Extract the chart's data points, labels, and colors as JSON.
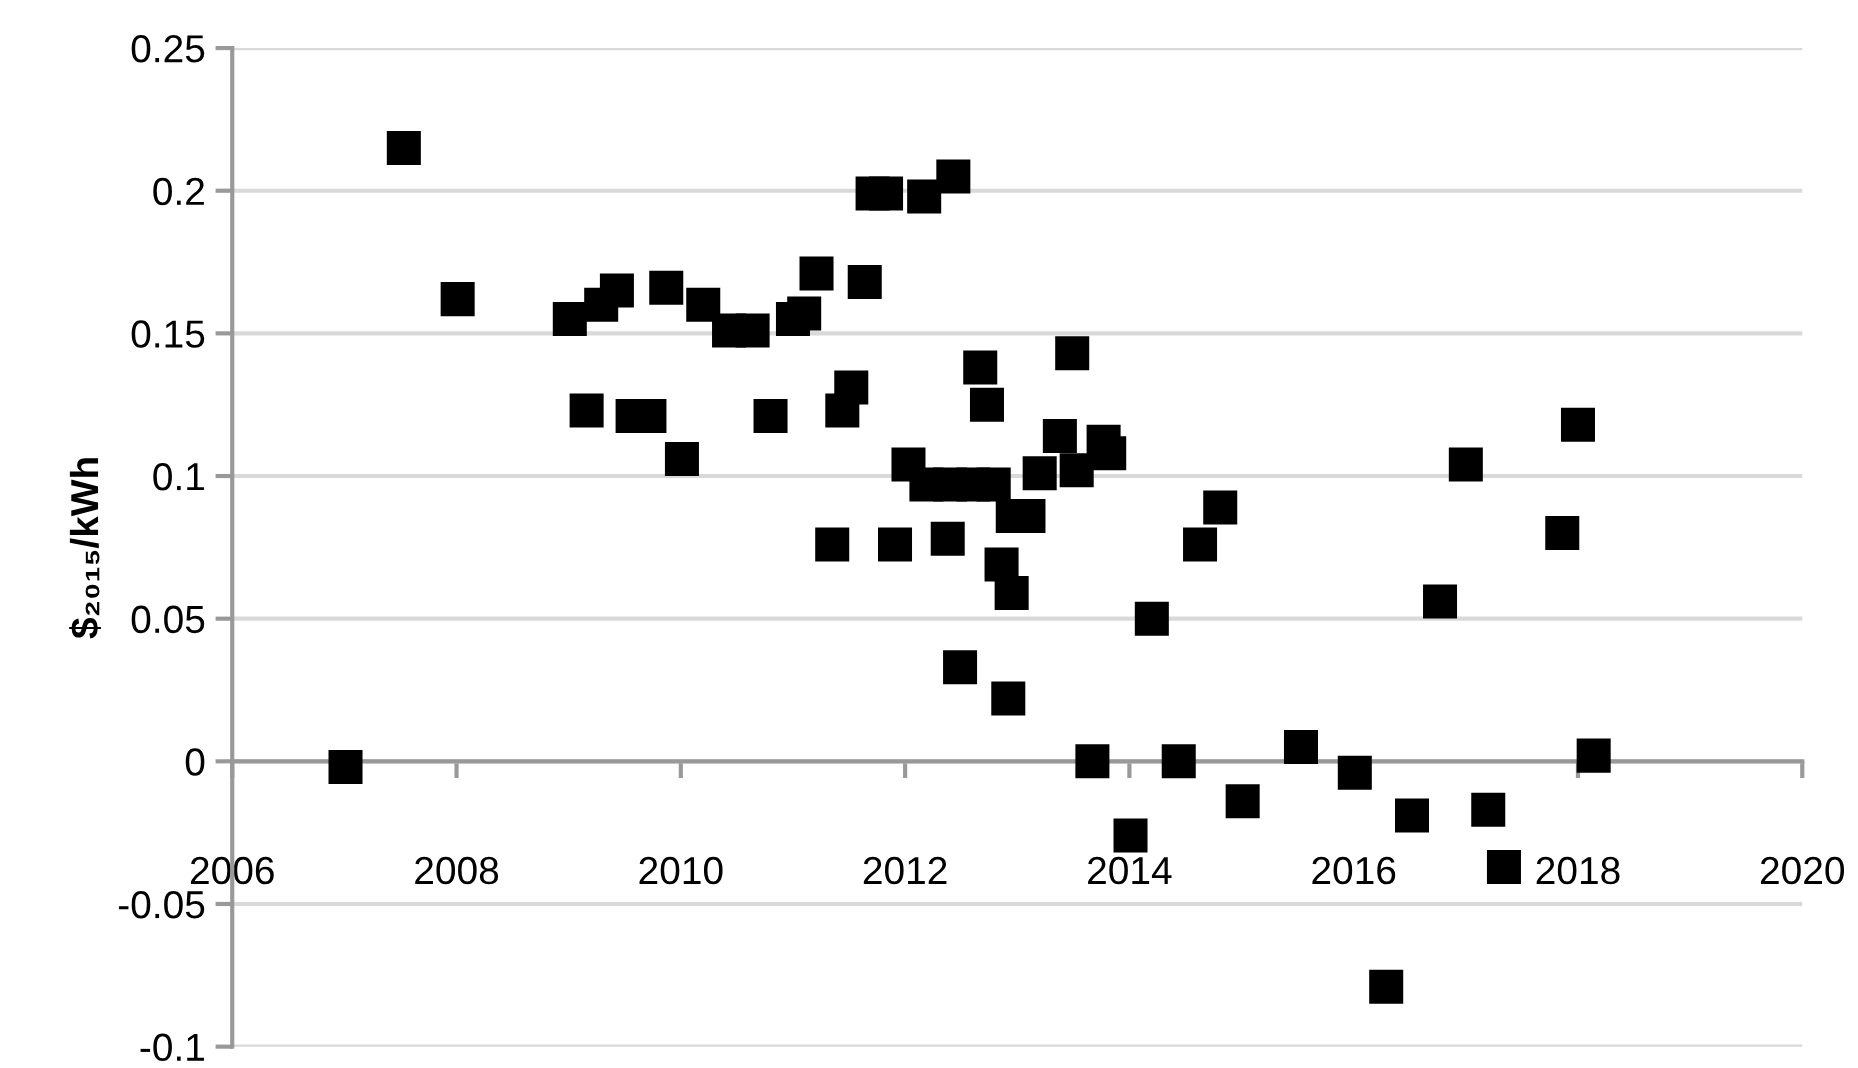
{
  "chart_data": {
    "type": "scatter",
    "ylabel": "$₂₀₁₅/kWh",
    "x": [
      2007.01,
      2007.53,
      2008.01,
      2009.01,
      2009.16,
      2009.29,
      2009.43,
      2009.57,
      2009.72,
      2009.87,
      2010.01,
      2010.2,
      2010.43,
      2010.64,
      2010.8,
      2011.0,
      2011.1,
      2011.21,
      2011.35,
      2011.44,
      2011.52,
      2011.64,
      2011.71,
      2011.83,
      2011.91,
      2012.03,
      2012.17,
      2012.19,
      2012.38,
      2012.4,
      2012.43,
      2012.49,
      2012.61,
      2012.67,
      2012.73,
      2012.79,
      2012.86,
      2012.92,
      2012.95,
      2012.96,
      2013.1,
      2013.2,
      2013.38,
      2013.49,
      2013.53,
      2013.67,
      2013.77,
      2013.82,
      2014.01,
      2014.2,
      2014.44,
      2014.63,
      2014.81,
      2015.01,
      2015.53,
      2016.01,
      2016.29,
      2016.52,
      2016.77,
      2017.0,
      2017.2,
      2017.34,
      2017.86,
      2018.0,
      2018.14
    ],
    "values": [
      -0.002,
      0.215,
      0.162,
      0.155,
      0.123,
      0.16,
      0.165,
      0.121,
      0.121,
      0.166,
      0.106,
      0.16,
      0.151,
      0.151,
      0.121,
      0.155,
      0.157,
      0.171,
      0.076,
      0.123,
      0.131,
      0.168,
      0.199,
      0.199,
      0.076,
      0.104,
      0.198,
      0.097,
      0.078,
      0.097,
      0.205,
      0.033,
      0.097,
      0.138,
      0.125,
      0.097,
      0.069,
      0.022,
      0.059,
      0.086,
      0.086,
      0.101,
      0.114,
      0.143,
      0.102,
      0.0,
      0.112,
      0.108,
      -0.026,
      0.05,
      0.0,
      0.076,
      0.089,
      -0.014,
      0.005,
      -0.004,
      -0.079,
      -0.019,
      0.056,
      0.104,
      -0.017,
      -0.037,
      0.08,
      0.118,
      0.002
    ],
    "color": "#000000",
    "marker": "square",
    "xlim": [
      2006,
      2020
    ],
    "xticks": [
      2006,
      2008,
      2010,
      2012,
      2014,
      2016,
      2018,
      2020
    ],
    "ylim": [
      -0.1,
      0.25
    ],
    "yticks": [
      -0.1,
      -0.05,
      0,
      0.05,
      0.1,
      0.15,
      0.2,
      0.25
    ],
    "grid": "y"
  }
}
